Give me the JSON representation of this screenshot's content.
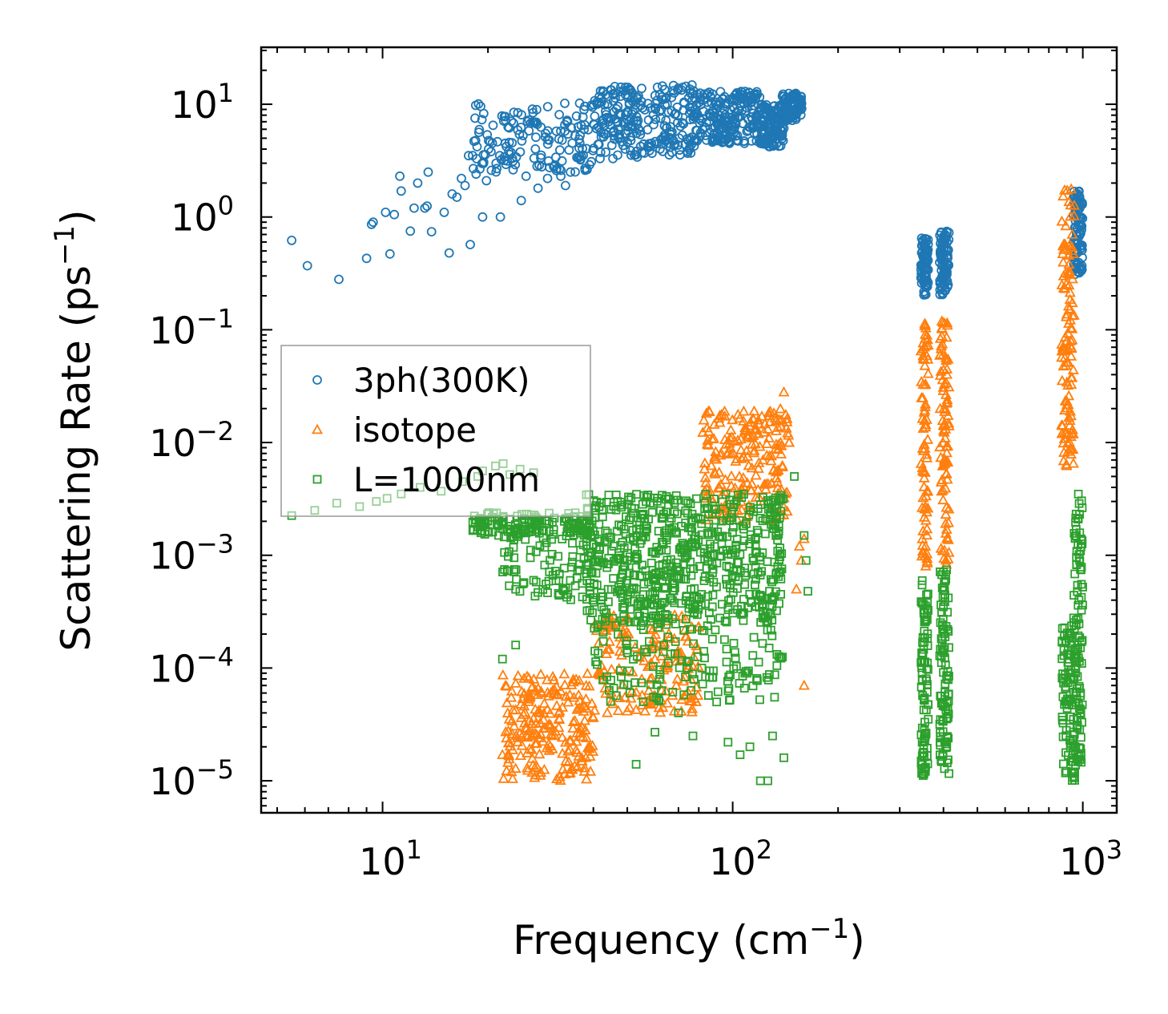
{
  "chart_data": {
    "type": "scatter",
    "title": "",
    "xlabel": "Frequency (cm",
    "xlabel_sup": "−1",
    "xlabel_end": ")",
    "ylabel": "Scattering Rate (ps",
    "ylabel_sup": "−1",
    "ylabel_end": ")",
    "xscale": "log",
    "yscale": "log",
    "xlim": [
      4.5,
      1250
    ],
    "ylim": [
      5.2e-06,
      32
    ],
    "legend_position": "center-left",
    "x_ticks": [
      {
        "value": 10,
        "base": "10",
        "exp": "1"
      },
      {
        "value": 100,
        "base": "10",
        "exp": "2"
      },
      {
        "value": 1000,
        "base": "10",
        "exp": "3"
      }
    ],
    "y_ticks": [
      {
        "value": 1e-05,
        "base": "10",
        "exp": "−5"
      },
      {
        "value": 0.0001,
        "base": "10",
        "exp": "−4"
      },
      {
        "value": 0.001,
        "base": "10",
        "exp": "−3"
      },
      {
        "value": 0.01,
        "base": "10",
        "exp": "−2"
      },
      {
        "value": 0.1,
        "base": "10",
        "exp": "−1"
      },
      {
        "value": 1,
        "base": "10",
        "exp": "0"
      },
      {
        "value": 10,
        "base": "10",
        "exp": "1"
      }
    ],
    "series": [
      {
        "name": "3ph(300K)",
        "marker": "circle",
        "color": "#1f77b4",
        "points": [
          [
            5.5,
            0.62
          ],
          [
            6.1,
            0.37
          ],
          [
            7.5,
            0.28
          ],
          [
            9.0,
            0.43
          ],
          [
            9.3,
            0.86
          ],
          [
            9.4,
            0.9
          ],
          [
            10.2,
            1.1
          ],
          [
            10.5,
            0.47
          ],
          [
            10.8,
            1.05
          ],
          [
            11.2,
            2.3
          ],
          [
            11.3,
            1.7
          ],
          [
            12.0,
            0.75
          ],
          [
            12.3,
            1.2
          ],
          [
            12.6,
            2.0
          ],
          [
            13.2,
            1.2
          ],
          [
            13.4,
            1.25
          ],
          [
            13.5,
            2.5
          ],
          [
            13.8,
            0.74
          ],
          [
            15.0,
            1.1
          ],
          [
            15.5,
            0.48
          ],
          [
            15.8,
            1.6
          ],
          [
            16.3,
            1.5
          ],
          [
            16.8,
            2.2
          ],
          [
            17.2,
            1.9
          ],
          [
            17.6,
            3.5
          ],
          [
            17.8,
            0.57
          ],
          [
            18.5,
            2.4
          ],
          [
            19.3,
            1.0
          ],
          [
            19.8,
            2.1
          ],
          [
            20.4,
            3.8
          ],
          [
            21.1,
            3.0
          ],
          [
            21.7,
            1.0
          ],
          [
            22.4,
            4.5
          ],
          [
            24.1,
            3.4
          ],
          [
            24.9,
            1.4
          ],
          [
            25.7,
            2.3
          ],
          [
            27.4,
            5.1
          ],
          [
            27.8,
            1.8
          ],
          [
            29.6,
            2.2
          ],
          [
            32.3,
            2.3
          ],
          [
            33.3,
            1.9
          ],
          [
            34.4,
            2.5
          ],
          [
            37.9,
            2.6
          ],
          [
            39.0,
            2.9
          ],
          [
            41.8,
            3.3
          ],
          [
            45.5,
            3.3
          ],
          [
            49.3,
            4.0
          ],
          [
            53.4,
            3.4
          ],
          [
            58.6,
            4.5
          ],
          [
            62.0,
            4.0
          ],
          [
            66.0,
            4.5
          ],
          [
            70.3,
            5.0
          ],
          [
            76.4,
            5.1
          ],
          [
            82.0,
            6.0
          ],
          [
            91.0,
            8.0
          ],
          [
            97.0,
            5.0
          ],
          [
            108.0,
            4.7
          ],
          [
            120.0,
            4.5
          ],
          [
            130.0,
            4.3
          ]
        ],
        "bands": [
          {
            "xrange": [
              18,
              40
            ],
            "yrange": [
              2.5,
              10.5
            ],
            "count": 150
          },
          {
            "xrange": [
              40,
              80
            ],
            "yrange": [
              3.5,
              15.0
            ],
            "count": 260
          },
          {
            "xrange": [
              80,
              120
            ],
            "yrange": [
              4.5,
              13.0
            ],
            "count": 200
          },
          {
            "xrange": [
              120,
              140
            ],
            "yrange": [
              4.2,
              10.0
            ],
            "count": 130
          },
          {
            "xrange": [
              138,
              158
            ],
            "yrange": [
              7.0,
              12.5
            ],
            "count": 100
          },
          {
            "xrange": [
              345,
              362
            ],
            "yrange": [
              0.2,
              0.65
            ],
            "count": 80
          },
          {
            "xrange": [
              390,
              415
            ],
            "yrange": [
              0.2,
              0.75
            ],
            "count": 90
          },
          {
            "xrange": [
              940,
              1000
            ],
            "yrange": [
              0.3,
              1.7
            ],
            "count": 110
          }
        ]
      },
      {
        "name": "isotope",
        "marker": "triangle",
        "color": "#ff7f0e",
        "points": [
          [
            140.0,
            0.028
          ],
          [
            160.0,
            7e-05
          ],
          [
            157.0,
            0.0009
          ],
          [
            155.0,
            0.0012
          ],
          [
            152.0,
            0.0005
          ],
          [
            160.0,
            0.0014
          ],
          [
            57.0,
            5e-05
          ],
          [
            60.0,
            0.00012
          ],
          [
            65.0,
            0.0001
          ]
        ],
        "bands": [
          {
            "xrange": [
              22,
              40
            ],
            "yrange": [
              1e-05,
              9e-05
            ],
            "count": 220
          },
          {
            "xrange": [
              40,
              80
            ],
            "yrange": [
              4e-05,
              0.0003
            ],
            "count": 160
          },
          {
            "xrange": [
              82,
              145
            ],
            "yrange": [
              0.002,
              0.02
            ],
            "count": 210
          },
          {
            "xrange": [
              345,
              362
            ],
            "yrange": [
              0.0008,
              0.12
            ],
            "count": 80
          },
          {
            "xrange": [
              390,
              415
            ],
            "yrange": [
              0.0008,
              0.12
            ],
            "count": 90
          },
          {
            "xrange": [
              870,
              945
            ],
            "yrange": [
              0.006,
              1.9
            ],
            "count": 120
          }
        ]
      },
      {
        "name": "L=1000nm",
        "marker": "square",
        "color": "#2ca02c",
        "points": [
          [
            5.5,
            0.00225
          ],
          [
            6.4,
            0.0025
          ],
          [
            7.4,
            0.0029
          ],
          [
            8.6,
            0.0027
          ],
          [
            9.6,
            0.003
          ],
          [
            10.3,
            0.0032
          ],
          [
            11.3,
            0.0035
          ],
          [
            12.8,
            0.004
          ],
          [
            14.7,
            0.0037
          ],
          [
            16.9,
            0.0045
          ],
          [
            18.7,
            0.005
          ],
          [
            19.3,
            0.0056
          ],
          [
            21.0,
            0.0062
          ],
          [
            22.1,
            0.0065
          ],
          [
            23.1,
            0.0052
          ],
          [
            24.7,
            0.0058
          ],
          [
            27.0,
            0.0054
          ],
          [
            22.0,
            0.00012
          ],
          [
            24.0,
            0.00016
          ],
          [
            53.0,
            1.4e-05
          ],
          [
            60.0,
            2.7e-05
          ],
          [
            77.0,
            2.5e-05
          ],
          [
            97.0,
            2.2e-05
          ],
          [
            105.0,
            1.7e-05
          ],
          [
            112.0,
            2e-05
          ],
          [
            126.0,
            1e-05
          ],
          [
            130.0,
            2.5e-05
          ],
          [
            140.0,
            1.6e-05
          ],
          [
            160.0,
            0.0015
          ],
          [
            162.0,
            0.0009
          ],
          [
            164.0,
            0.00048
          ],
          [
            150.0,
            0.005
          ],
          [
            120.0,
            1e-05
          ],
          [
            70.0,
            4e-05
          ],
          [
            90.0,
            5e-05
          ],
          [
            110.0,
            9e-05
          ],
          [
            24.0,
            0.0005
          ],
          [
            27.0,
            0.0006
          ]
        ],
        "bands": [
          {
            "xrange": [
              18,
              40
            ],
            "yrange": [
              0.0015,
              0.0024
            ],
            "count": 120
          },
          {
            "xrange": [
              22,
              40
            ],
            "yrange": [
              0.0004,
              0.002
            ],
            "count": 110
          },
          {
            "xrange": [
              38,
              140
            ],
            "yrange": [
              0.00025,
              0.0035
            ],
            "count": 650
          },
          {
            "xrange": [
              40,
              140
            ],
            "yrange": [
              5e-05,
              0.00025
            ],
            "count": 140
          },
          {
            "xrange": [
              345,
              362
            ],
            "yrange": [
              1.1e-05,
              0.0006
            ],
            "count": 90
          },
          {
            "xrange": [
              390,
              415
            ],
            "yrange": [
              1.1e-05,
              0.00075
            ],
            "count": 100
          },
          {
            "xrange": [
              870,
              945
            ],
            "yrange": [
              1e-05,
              0.00028
            ],
            "count": 80
          },
          {
            "xrange": [
              940,
              1000
            ],
            "yrange": [
              1e-05,
              0.0035
            ],
            "count": 110
          }
        ]
      }
    ]
  }
}
